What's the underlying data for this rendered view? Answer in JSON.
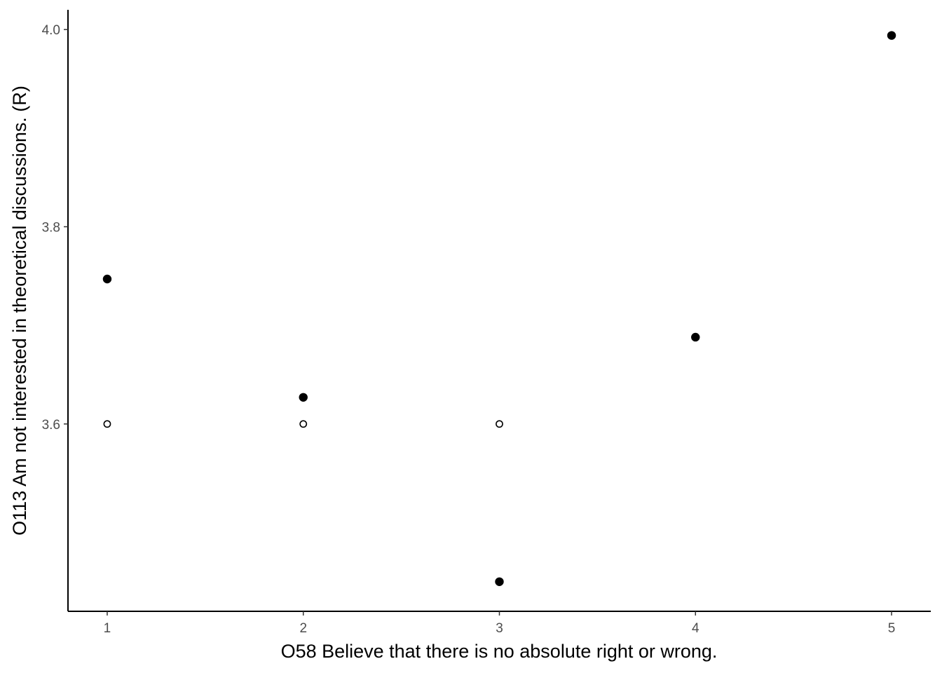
{
  "chart_data": {
    "type": "scatter",
    "title": "",
    "xlabel": "O58 Believe that there is no absolute right or wrong.",
    "ylabel": "O113 Am not interested in theoretical discussions. (R)",
    "xlim": [
      0.8,
      5.2
    ],
    "ylim": [
      3.41,
      4.02
    ],
    "x_ticks": [
      1,
      2,
      3,
      4,
      5
    ],
    "x_tick_labels": [
      "1",
      "2",
      "3",
      "4",
      "5"
    ],
    "y_ticks": [
      3.6,
      3.8,
      4.0
    ],
    "y_tick_labels": [
      "3.6",
      "3.8",
      "4.0"
    ],
    "grid": false,
    "series": [
      {
        "style": "filled",
        "color": "#000000",
        "points": [
          {
            "x": 1,
            "y": 3.747
          },
          {
            "x": 2,
            "y": 3.627
          },
          {
            "x": 3,
            "y": 3.44
          },
          {
            "x": 4,
            "y": 3.688
          },
          {
            "x": 5,
            "y": 3.994
          }
        ]
      },
      {
        "style": "hollow",
        "color": "#000000",
        "points": [
          {
            "x": 1,
            "y": 3.6
          },
          {
            "x": 2,
            "y": 3.6
          },
          {
            "x": 3,
            "y": 3.6
          }
        ]
      }
    ]
  }
}
